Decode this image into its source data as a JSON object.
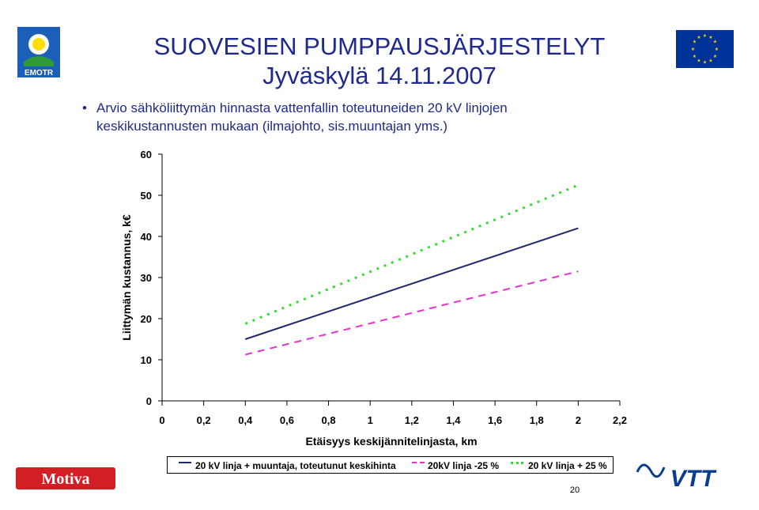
{
  "slide": {
    "title_line1": "SUOVESIEN PUMPPAUSJÄRJESTELYT",
    "title_line2": "Jyväskylä 14.11.2007",
    "bullet_text": "Arvio sähköliittymän hinnasta vattenfallin toteutuneiden 20 kV linjojen keskikustannusten mukaan (ilmajohto, sis.muuntajan yms.)",
    "page_number": "20",
    "logos": {
      "emotr": "EMOTR",
      "motiva": "Motiva",
      "vtt": "VTT"
    },
    "colors": {
      "title": "#1f2a8c",
      "emotr_blue": "#1c5fb8",
      "eu_blue": "#003399",
      "eu_star": "#ffcc00",
      "motiva_red": "#d21f26",
      "vtt_blue": "#0a3d91"
    }
  },
  "chart_data": {
    "type": "line",
    "title": "",
    "xlabel": "Etäisyys keskijännitelinjasta, km",
    "ylabel": "Liittymän kustannus, k€",
    "xlim": [
      0,
      2.2
    ],
    "ylim": [
      0,
      60
    ],
    "x_ticks": [
      "0",
      "0,2",
      "0,4",
      "0,6",
      "0,8",
      "1",
      "1,2",
      "1,4",
      "1,6",
      "1,8",
      "2",
      "2,2"
    ],
    "y_ticks": [
      "0",
      "10",
      "20",
      "30",
      "40",
      "50",
      "60"
    ],
    "grid": false,
    "legend_position": "bottom",
    "x": [
      0.4,
      2.0
    ],
    "series": [
      {
        "name": "20 kV linja + muuntaja, toteutunut keskihinta",
        "values": [
          15,
          42
        ],
        "color": "#1f2a6c",
        "dash": "solid"
      },
      {
        "name": "20kV linja -25 %",
        "values": [
          11.25,
          31.5
        ],
        "color": "#e633cc",
        "dash": "dashed"
      },
      {
        "name": "20 kV linja + 25 %",
        "values": [
          18.75,
          52.5
        ],
        "color": "#33dd33",
        "dash": "dotted"
      }
    ]
  }
}
